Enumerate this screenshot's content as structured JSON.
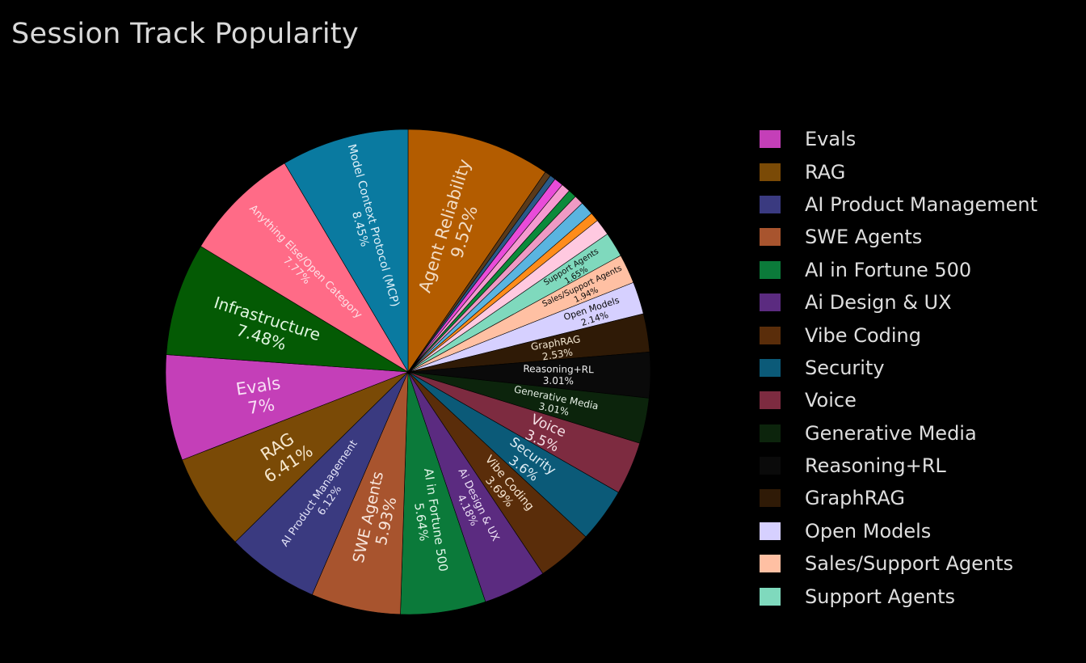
{
  "chart_data": {
    "type": "pie",
    "title": "Session Track Popularity",
    "slices": [
      {
        "label": "Agent Reliability",
        "value": 9.52,
        "text_label": "Agent Reliability",
        "text_value": "9.52%",
        "color": "#b35c00",
        "text_color": "#f2dcc4"
      },
      {
        "label": "",
        "value": 0.4,
        "text_label": "",
        "text_value": "",
        "color": "#5a3a1a"
      },
      {
        "label": "",
        "value": 0.38,
        "text_label": "",
        "text_value": "",
        "color": "#2a5a88"
      },
      {
        "label": "",
        "value": 0.6,
        "text_label": "",
        "text_value": "",
        "color": "#e94bd9"
      },
      {
        "label": "",
        "value": 0.6,
        "text_label": "",
        "text_value": "",
        "color": "#f59ad0"
      },
      {
        "label": "",
        "value": 0.55,
        "text_label": "",
        "text_value": "",
        "color": "#0b8a3a"
      },
      {
        "label": "",
        "value": 0.62,
        "text_label": "",
        "text_value": "",
        "color": "#ee9ac4"
      },
      {
        "label": "",
        "value": 0.9,
        "text_label": "",
        "text_value": "",
        "color": "#5ab4e0"
      },
      {
        "label": "",
        "value": 0.6,
        "text_label": "",
        "text_value": "",
        "color": "#ff8c1a"
      },
      {
        "label": "",
        "value": 1.1,
        "text_label": "",
        "text_value": "",
        "color": "#ffc9e0"
      },
      {
        "label": "Support Agents",
        "value": 1.65,
        "text_label": "Support Agents",
        "text_value": "1.65%",
        "color": "#7fd9bd",
        "text_color": "#0a0a0a"
      },
      {
        "label": "Sales/Support Agents",
        "value": 1.94,
        "text_label": "Sales/Support Agents",
        "text_value": "1.94%",
        "color": "#ffc0a3",
        "text_color": "#0a0a0a"
      },
      {
        "label": "Open Models",
        "value": 2.14,
        "text_label": "Open Models",
        "text_value": "2.14%",
        "color": "#d6d0ff",
        "text_color": "#0a0a0a"
      },
      {
        "label": "GraphRAG",
        "value": 2.53,
        "text_label": "GraphRAG",
        "text_value": "2.53%",
        "color": "#2f1a06",
        "text_color": "#f0e4cf"
      },
      {
        "label": "Reasoning+RL",
        "value": 3.01,
        "text_label": "Reasoning+RL",
        "text_value": "3.01%",
        "color": "#0a0a0a",
        "text_color": "#f0f0f0"
      },
      {
        "label": "Generative Media",
        "value": 3.01,
        "text_label": "Generative Media",
        "text_value": "3.01%",
        "color": "#0c240c",
        "text_color": "#e6f0e6"
      },
      {
        "label": "Voice",
        "value": 3.5,
        "text_label": "Voice",
        "text_value": "3.5%",
        "color": "#7d2b40",
        "text_color": "#f5e0e6"
      },
      {
        "label": "Security",
        "value": 3.6,
        "text_label": "Security",
        "text_value": "3.6%",
        "color": "#0b5a78",
        "text_color": "#e0eef5"
      },
      {
        "label": "Vibe Coding",
        "value": 3.69,
        "text_label": "Vibe Coding",
        "text_value": "3.69%",
        "color": "#5a2d0a",
        "text_color": "#f5e4d0"
      },
      {
        "label": "Ai Design & UX",
        "value": 4.18,
        "text_label": "Ai Design & UX",
        "text_value": "4.18%",
        "color": "#5b2b80",
        "text_color": "#ece0f5"
      },
      {
        "label": "AI in Fortune 500",
        "value": 5.64,
        "text_label": "AI in Fortune 500",
        "text_value": "5.64%",
        "color": "#0b7a3a",
        "text_color": "#e0f5e8"
      },
      {
        "label": "SWE Agents",
        "value": 5.93,
        "text_label": "SWE Agents",
        "text_value": "5.93%",
        "color": "#a8542e",
        "text_color": "#f8e6dc"
      },
      {
        "label": "AI Product Management",
        "value": 6.12,
        "text_label": "AI Product Management",
        "text_value": "6.12%",
        "color": "#3a3a80",
        "text_color": "#e4e4f8"
      },
      {
        "label": "RAG",
        "value": 6.41,
        "text_label": "RAG",
        "text_value": "6.41%",
        "color": "#7a4a06",
        "text_color": "#f5e6cc"
      },
      {
        "label": "Evals",
        "value": 7.0,
        "text_label": "Evals",
        "text_value": "7%",
        "color": "#c43fb8",
        "text_color": "#f8e0f5"
      },
      {
        "label": "Infrastructure",
        "value": 7.48,
        "text_label": "Infrastructure",
        "text_value": "7.48%",
        "color": "#045a04",
        "text_color": "#e0f5e0"
      },
      {
        "label": "Anything Else/Open Category",
        "value": 7.77,
        "text_label": "Anything Else/Open Category",
        "text_value": "7.77%",
        "color": "#ff6b87",
        "text_color": "#fde0e6"
      },
      {
        "label": "Model Context Protocol (MCP)",
        "value": 8.45,
        "text_label": "Model Context Protocol (MCP)",
        "text_value": "8.45%",
        "color": "#0a7aa0",
        "text_color": "#e0f0f8"
      }
    ],
    "legend": [
      {
        "label": "Evals",
        "color": "#c43fb8"
      },
      {
        "label": "RAG",
        "color": "#7a4a06"
      },
      {
        "label": "AI Product Management",
        "color": "#3a3a80"
      },
      {
        "label": "SWE Agents",
        "color": "#a8542e"
      },
      {
        "label": "AI in Fortune 500",
        "color": "#0b7a3a"
      },
      {
        "label": "Ai Design & UX",
        "color": "#5b2b80"
      },
      {
        "label": "Vibe Coding",
        "color": "#5a2d0a"
      },
      {
        "label": "Security",
        "color": "#0b5a78"
      },
      {
        "label": "Voice",
        "color": "#7d2b40"
      },
      {
        "label": "Generative Media",
        "color": "#0c240c"
      },
      {
        "label": "Reasoning+RL",
        "color": "#0a0a0a"
      },
      {
        "label": "GraphRAG",
        "color": "#2f1a06"
      },
      {
        "label": "Open Models",
        "color": "#d6d0ff"
      },
      {
        "label": "Sales/Support Agents",
        "color": "#ffc0a3"
      },
      {
        "label": "Support Agents",
        "color": "#7fd9bd"
      }
    ],
    "legend_position": "right"
  }
}
